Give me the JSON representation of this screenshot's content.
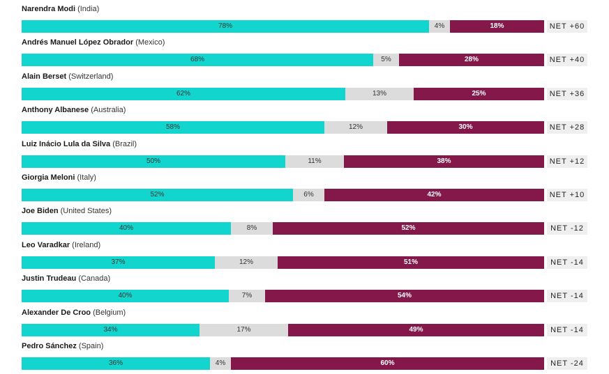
{
  "colors": {
    "approve": "#12d6cd",
    "neutral": "#dcdcdc",
    "disapprove": "#85184b"
  },
  "chart_data": {
    "type": "bar",
    "orientation": "horizontal",
    "stacked": true,
    "categories": [
      "Narendra Modi (India)",
      "Andrés Manuel López Obrador (Mexico)",
      "Alain Berset (Switzerland)",
      "Anthony Albanese (Australia)",
      "Luiz Inácio Lula da Silva (Brazil)",
      "Giorgia Meloni (Italy)",
      "Joe Biden (United States)",
      "Leo Varadkar (Ireland)",
      "Justin Trudeau (Canada)",
      "Alexander De Croo (Belgium)",
      "Pedro Sánchez (Spain)"
    ],
    "xlim": [
      0,
      100
    ],
    "rows": [
      {
        "name": "Narendra Modi",
        "country": "(India)",
        "approve": 78,
        "approve_label": "78%",
        "neutral": 4,
        "neutral_label": "4%",
        "disapprove": 18,
        "disapprove_label": "18%",
        "net": "NET +60"
      },
      {
        "name": "Andrés Manuel López Obrador",
        "country": "(Mexico)",
        "approve": 68,
        "approve_label": "68%",
        "neutral": 5,
        "neutral_label": "5%",
        "disapprove": 28,
        "disapprove_label": "28%",
        "net": "NET +40"
      },
      {
        "name": "Alain Berset",
        "country": "(Switzerland)",
        "approve": 62,
        "approve_label": "62%",
        "neutral": 13,
        "neutral_label": "13%",
        "disapprove": 25,
        "disapprove_label": "25%",
        "net": "NET +36"
      },
      {
        "name": "Anthony Albanese",
        "country": "(Australia)",
        "approve": 58,
        "approve_label": "58%",
        "neutral": 12,
        "neutral_label": "12%",
        "disapprove": 30,
        "disapprove_label": "30%",
        "net": "NET +28"
      },
      {
        "name": "Luiz Inácio Lula da Silva",
        "country": "(Brazil)",
        "approve": 50,
        "approve_label": "50%",
        "neutral": 11,
        "neutral_label": "11%",
        "disapprove": 38,
        "disapprove_label": "38%",
        "net": "NET +12"
      },
      {
        "name": "Giorgia Meloni",
        "country": "(Italy)",
        "approve": 52,
        "approve_label": "52%",
        "neutral": 6,
        "neutral_label": "6%",
        "disapprove": 42,
        "disapprove_label": "42%",
        "net": "NET +10"
      },
      {
        "name": "Joe Biden",
        "country": "(United States)",
        "approve": 40,
        "approve_label": "40%",
        "neutral": 8,
        "neutral_label": "8%",
        "disapprove": 52,
        "disapprove_label": "52%",
        "net": "NET -12"
      },
      {
        "name": "Leo Varadkar",
        "country": "(Ireland)",
        "approve": 37,
        "approve_label": "37%",
        "neutral": 12,
        "neutral_label": "12%",
        "disapprove": 51,
        "disapprove_label": "51%",
        "net": "NET -14"
      },
      {
        "name": "Justin Trudeau",
        "country": "(Canada)",
        "approve": 40,
        "approve_label": "40%",
        "neutral": 7,
        "neutral_label": "7%",
        "disapprove": 54,
        "disapprove_label": "54%",
        "net": "NET -14"
      },
      {
        "name": "Alexander De Croo",
        "country": "(Belgium)",
        "approve": 34,
        "approve_label": "34%",
        "neutral": 17,
        "neutral_label": "17%",
        "disapprove": 49,
        "disapprove_label": "49%",
        "net": "NET -14"
      },
      {
        "name": "Pedro Sánchez",
        "country": "(Spain)",
        "approve": 36,
        "approve_label": "36%",
        "neutral": 4,
        "neutral_label": "4%",
        "disapprove": 60,
        "disapprove_label": "60%",
        "net": "NET -24"
      }
    ]
  }
}
